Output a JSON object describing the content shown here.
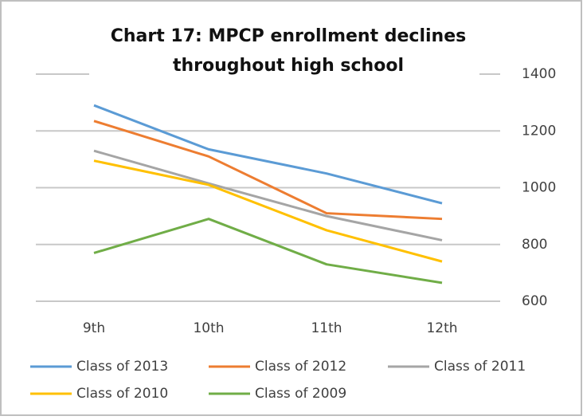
{
  "chart_data": {
    "type": "line",
    "title": [
      "Chart 17: MPCP enrollment declines",
      "throughout high school"
    ],
    "categories": [
      "9th",
      "10th",
      "11th",
      "12th"
    ],
    "series": [
      {
        "name": "Class of 2013",
        "color": "#5b9bd5",
        "values": [
          1290,
          1135,
          1050,
          945
        ]
      },
      {
        "name": "Class of 2012",
        "color": "#ed7d31",
        "values": [
          1235,
          1110,
          910,
          890
        ]
      },
      {
        "name": "Class of 2011",
        "color": "#a5a5a5",
        "values": [
          1130,
          1015,
          900,
          815
        ]
      },
      {
        "name": "Class of 2010",
        "color": "#ffc000",
        "values": [
          1095,
          1010,
          850,
          740
        ]
      },
      {
        "name": "Class of 2009",
        "color": "#70ad47",
        "values": [
          770,
          890,
          730,
          665
        ]
      }
    ],
    "ylim": [
      600,
      1400
    ],
    "yticks": [
      600,
      800,
      1000,
      1200,
      1400
    ],
    "grid": true,
    "legend": "bottom",
    "y_axis_side": "right"
  }
}
